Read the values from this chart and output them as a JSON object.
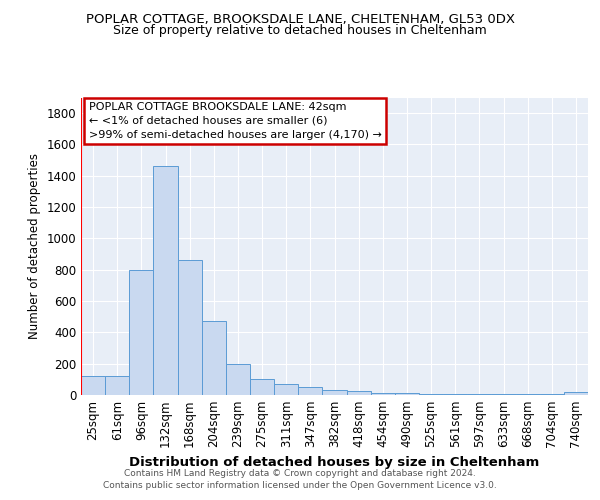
{
  "title": "POPLAR COTTAGE, BROOKSDALE LANE, CHELTENHAM, GL53 0DX",
  "subtitle": "Size of property relative to detached houses in Cheltenham",
  "xlabel": "Distribution of detached houses by size in Cheltenham",
  "ylabel": "Number of detached properties",
  "categories": [
    "25sqm",
    "61sqm",
    "96sqm",
    "132sqm",
    "168sqm",
    "204sqm",
    "239sqm",
    "275sqm",
    "311sqm",
    "347sqm",
    "382sqm",
    "418sqm",
    "454sqm",
    "490sqm",
    "525sqm",
    "561sqm",
    "597sqm",
    "633sqm",
    "668sqm",
    "704sqm",
    "740sqm"
  ],
  "values": [
    120,
    120,
    800,
    1460,
    860,
    475,
    200,
    105,
    72,
    50,
    30,
    25,
    15,
    10,
    6,
    5,
    5,
    4,
    4,
    4,
    18
  ],
  "bar_color": "#c9d9f0",
  "bar_edge_color": "#5b9bd5",
  "background_color": "#e8eef7",
  "grid_color": "#ffffff",
  "red_line_x": 0,
  "annotation_text": "POPLAR COTTAGE BROOKSDALE LANE: 42sqm\n← <1% of detached houses are smaller (6)\n>99% of semi-detached houses are larger (4,170) →",
  "annotation_box_color": "#ffffff",
  "annotation_box_edge_color": "#cc0000",
  "ylim": [
    0,
    1900
  ],
  "yticks": [
    0,
    200,
    400,
    600,
    800,
    1000,
    1200,
    1400,
    1600,
    1800
  ],
  "footer_line1": "Contains HM Land Registry data © Crown copyright and database right 2024.",
  "footer_line2": "Contains public sector information licensed under the Open Government Licence v3.0."
}
